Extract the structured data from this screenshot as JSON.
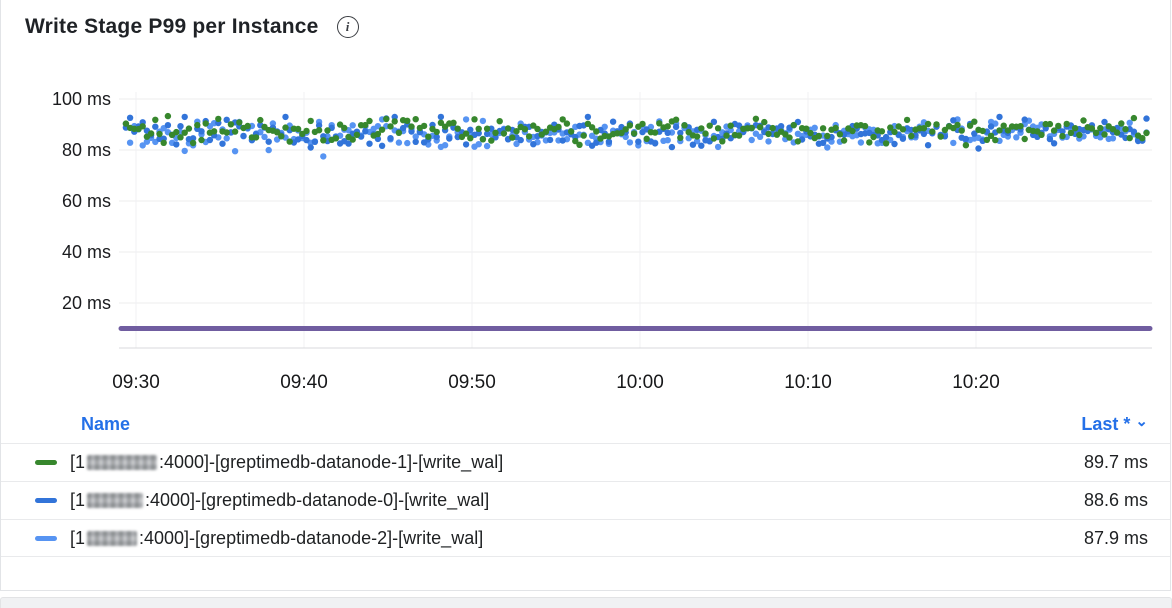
{
  "panel": {
    "title": "Write Stage P99 per Instance",
    "info_glyph": "i"
  },
  "legend": {
    "name_header": "Name",
    "last_header": "Last *",
    "sort_indicator": "⌄",
    "rows": [
      {
        "label_prefix": "[1",
        "label_redacted": "blurred-ip",
        "label_suffix": ":4000]-[greptimedb-datanode-1]-[write_wal]",
        "value": "89.7 ms",
        "color": "#37872D"
      },
      {
        "label_prefix": "[1",
        "label_redacted": "blurred-ip",
        "label_suffix": ":4000]-[greptimedb-datanode-0]-[write_wal]",
        "value": "88.6 ms",
        "color": "#3274D9"
      },
      {
        "label_prefix": "[1",
        "label_redacted": "blurred-ip",
        "label_suffix": ":4000]-[greptimedb-datanode-2]-[write_wal]",
        "value": "87.9 ms",
        "color": "#5794F2"
      }
    ]
  },
  "chart_data": {
    "type": "scatter",
    "title": "Write Stage P99 per Instance",
    "x_ticks": [
      "09:30",
      "09:40",
      "09:50",
      "10:00",
      "10:10",
      "10:20"
    ],
    "x_range": [
      "09:29",
      "10:30"
    ],
    "y_ticks": [
      20,
      40,
      60,
      80,
      100
    ],
    "y_tick_labels": [
      "20 ms",
      "40 ms",
      "60 ms",
      "80 ms",
      "100 ms"
    ],
    "ylim": [
      0,
      105
    ],
    "unit": "ms",
    "grid": true,
    "legend_position": "bottom",
    "series": [
      {
        "name": "[1…:4000]-[greptimedb-datanode-1]-[write_wal]",
        "color": "#37872D",
        "style": "points",
        "approx_mean_ms": 87.8,
        "approx_spread_ms": 2.5,
        "approx_range_ms": [
          80,
          94
        ],
        "last_ms": 89.7
      },
      {
        "name": "[1…:4000]-[greptimedb-datanode-0]-[write_wal]",
        "color": "#3274D9",
        "style": "points",
        "approx_mean_ms": 86.9,
        "approx_spread_ms": 2.5,
        "approx_range_ms": [
          79,
          93
        ],
        "last_ms": 88.6
      },
      {
        "name": "[1…:4000]-[greptimedb-datanode-2]-[write_wal]",
        "color": "#5794F2",
        "style": "points",
        "approx_mean_ms": 86.3,
        "approx_spread_ms": 2.6,
        "approx_range_ms": [
          76,
          92
        ],
        "last_ms": 87.9
      },
      {
        "name": "(unlabeled purple series, legend row cut off)",
        "color": "#705DA0",
        "style": "line",
        "approx_mean_ms": 10,
        "last_ms": null
      }
    ]
  }
}
